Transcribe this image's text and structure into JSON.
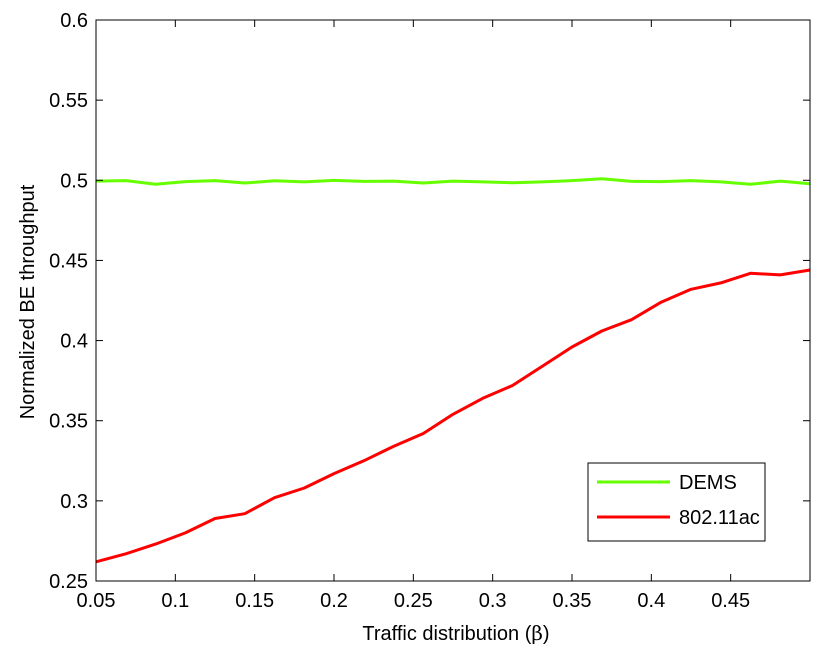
{
  "chart_data": {
    "type": "line",
    "xlabel_prefix": "Traffic distribution (",
    "xlabel_symbol": "β",
    "xlabel_suffix": ")",
    "ylabel": "Normalized BE throughput",
    "xlim": [
      0.05,
      0.5
    ],
    "ylim": [
      0.25,
      0.6
    ],
    "xticks": [
      0.05,
      0.1,
      0.15,
      0.2,
      0.25,
      0.3,
      0.35,
      0.4,
      0.45
    ],
    "xtick_labels": [
      "0.05",
      "0.1",
      "0.15",
      "0.2",
      "0.25",
      "0.3",
      "0.35",
      "0.4",
      "0.45"
    ],
    "yticks": [
      0.25,
      0.3,
      0.35,
      0.4,
      0.45,
      0.5,
      0.55,
      0.6
    ],
    "ytick_labels": [
      "0.25",
      "0.3",
      "0.35",
      "0.4",
      "0.45",
      "0.5",
      "0.55",
      "0.6"
    ],
    "grid": false,
    "legend_position": "lower-right",
    "x": [
      0.05,
      0.0688,
      0.0875,
      0.1063,
      0.125,
      0.1438,
      0.1625,
      0.1813,
      0.2,
      0.2188,
      0.2375,
      0.2563,
      0.275,
      0.2938,
      0.3125,
      0.3313,
      0.35,
      0.3688,
      0.3875,
      0.4063,
      0.425,
      0.4438,
      0.4625,
      0.4813,
      0.5
    ],
    "series": [
      {
        "name": "DEMS",
        "color": "#66ff00",
        "values": [
          0.4995,
          0.4998,
          0.4975,
          0.4992,
          0.4998,
          0.4983,
          0.4997,
          0.499,
          0.4999,
          0.4993,
          0.4995,
          0.4983,
          0.4995,
          0.499,
          0.4985,
          0.499,
          0.4998,
          0.501,
          0.4993,
          0.4992,
          0.4998,
          0.499,
          0.4975,
          0.4995,
          0.4978
        ]
      },
      {
        "name": "802.11ac",
        "color": "#ff0000",
        "values": [
          0.262,
          0.267,
          0.273,
          0.28,
          0.289,
          0.292,
          0.302,
          0.308,
          0.317,
          0.325,
          0.334,
          0.342,
          0.354,
          0.364,
          0.372,
          0.384,
          0.396,
          0.406,
          0.413,
          0.424,
          0.432,
          0.436,
          0.442,
          0.441,
          0.444
        ]
      }
    ]
  }
}
